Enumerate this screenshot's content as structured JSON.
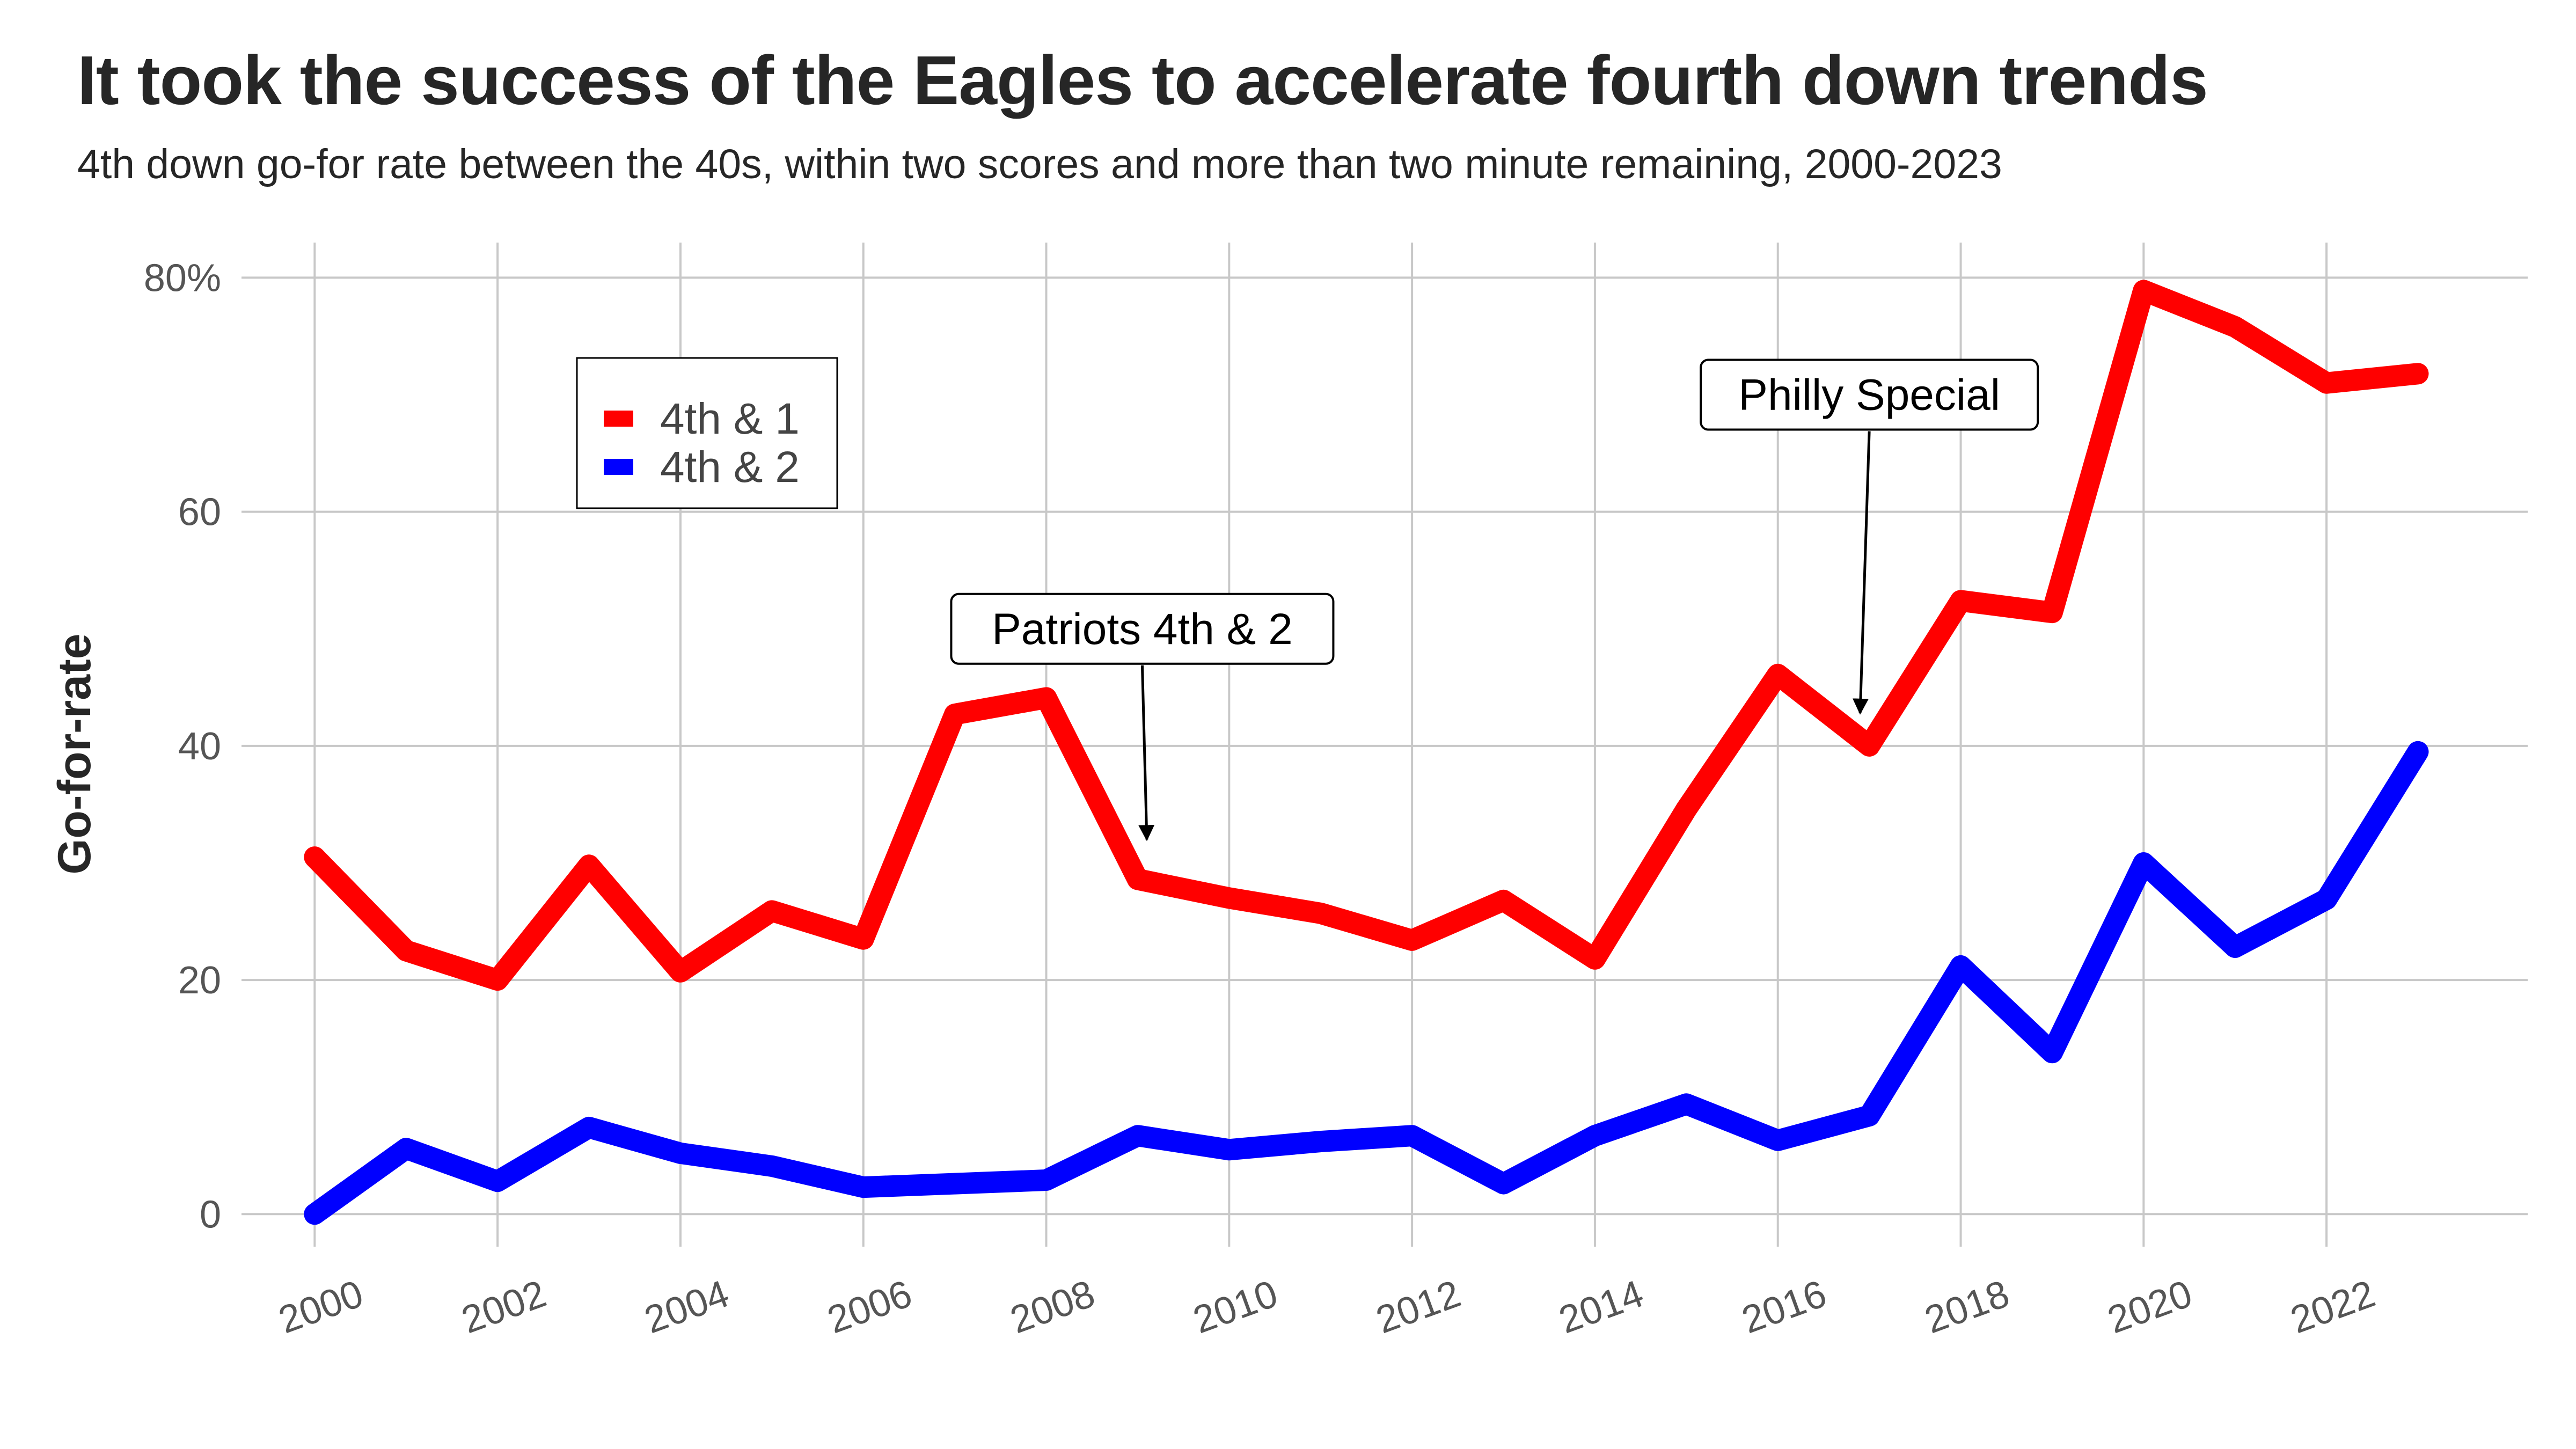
{
  "chart_data": {
    "type": "line",
    "title": "It took the success of the Eagles to accelerate fourth down trends",
    "subtitle": "4th down go-for rate between the 40s, within two scores and more than two minute remaining, 2000-2023",
    "xlabel": "",
    "ylabel": "Go-for-rate",
    "x": [
      2000,
      2001,
      2002,
      2003,
      2004,
      2005,
      2006,
      2007,
      2008,
      2009,
      2010,
      2011,
      2012,
      2013,
      2014,
      2015,
      2016,
      2017,
      2018,
      2019,
      2020,
      2021,
      2022,
      2023
    ],
    "x_ticks": [
      "2000",
      "2002",
      "2004",
      "2006",
      "2008",
      "2010",
      "2012",
      "2014",
      "2016",
      "2018",
      "2020",
      "2022"
    ],
    "y_ticks": [
      "0",
      "20",
      "40",
      "60",
      "80%"
    ],
    "xlim": [
      1999.2,
      2024.2
    ],
    "ylim": [
      -1.5,
      83
    ],
    "grid": true,
    "legend_position": "top-left",
    "series": [
      {
        "name": "4th & 1",
        "color": "#ff0000",
        "values": [
          30.5,
          22.5,
          20.0,
          29.8,
          20.7,
          25.9,
          23.5,
          42.7,
          44.1,
          28.6,
          27.0,
          25.7,
          23.4,
          26.8,
          21.8,
          34.6,
          46.1,
          40.0,
          52.4,
          51.4,
          78.9,
          75.8,
          71.0,
          71.8
        ]
      },
      {
        "name": "4th & 2",
        "color": "#0000ff",
        "values": [
          0.0,
          5.6,
          2.8,
          7.4,
          5.2,
          4.1,
          2.3,
          2.6,
          2.9,
          6.7,
          5.5,
          6.2,
          6.7,
          2.6,
          6.7,
          9.4,
          6.3,
          8.4,
          21.2,
          13.8,
          30.0,
          22.8,
          26.9,
          39.5
        ]
      }
    ],
    "annotations": [
      {
        "label": "Patriots 4th & 2",
        "text_x": 2009.05,
        "text_y": 50.0,
        "target_x": 2009.1,
        "target_y": 32.0
      },
      {
        "label": "Philly Special",
        "text_x": 2017.0,
        "text_y": 70.0,
        "target_x": 2016.9,
        "target_y": 42.8
      }
    ]
  }
}
